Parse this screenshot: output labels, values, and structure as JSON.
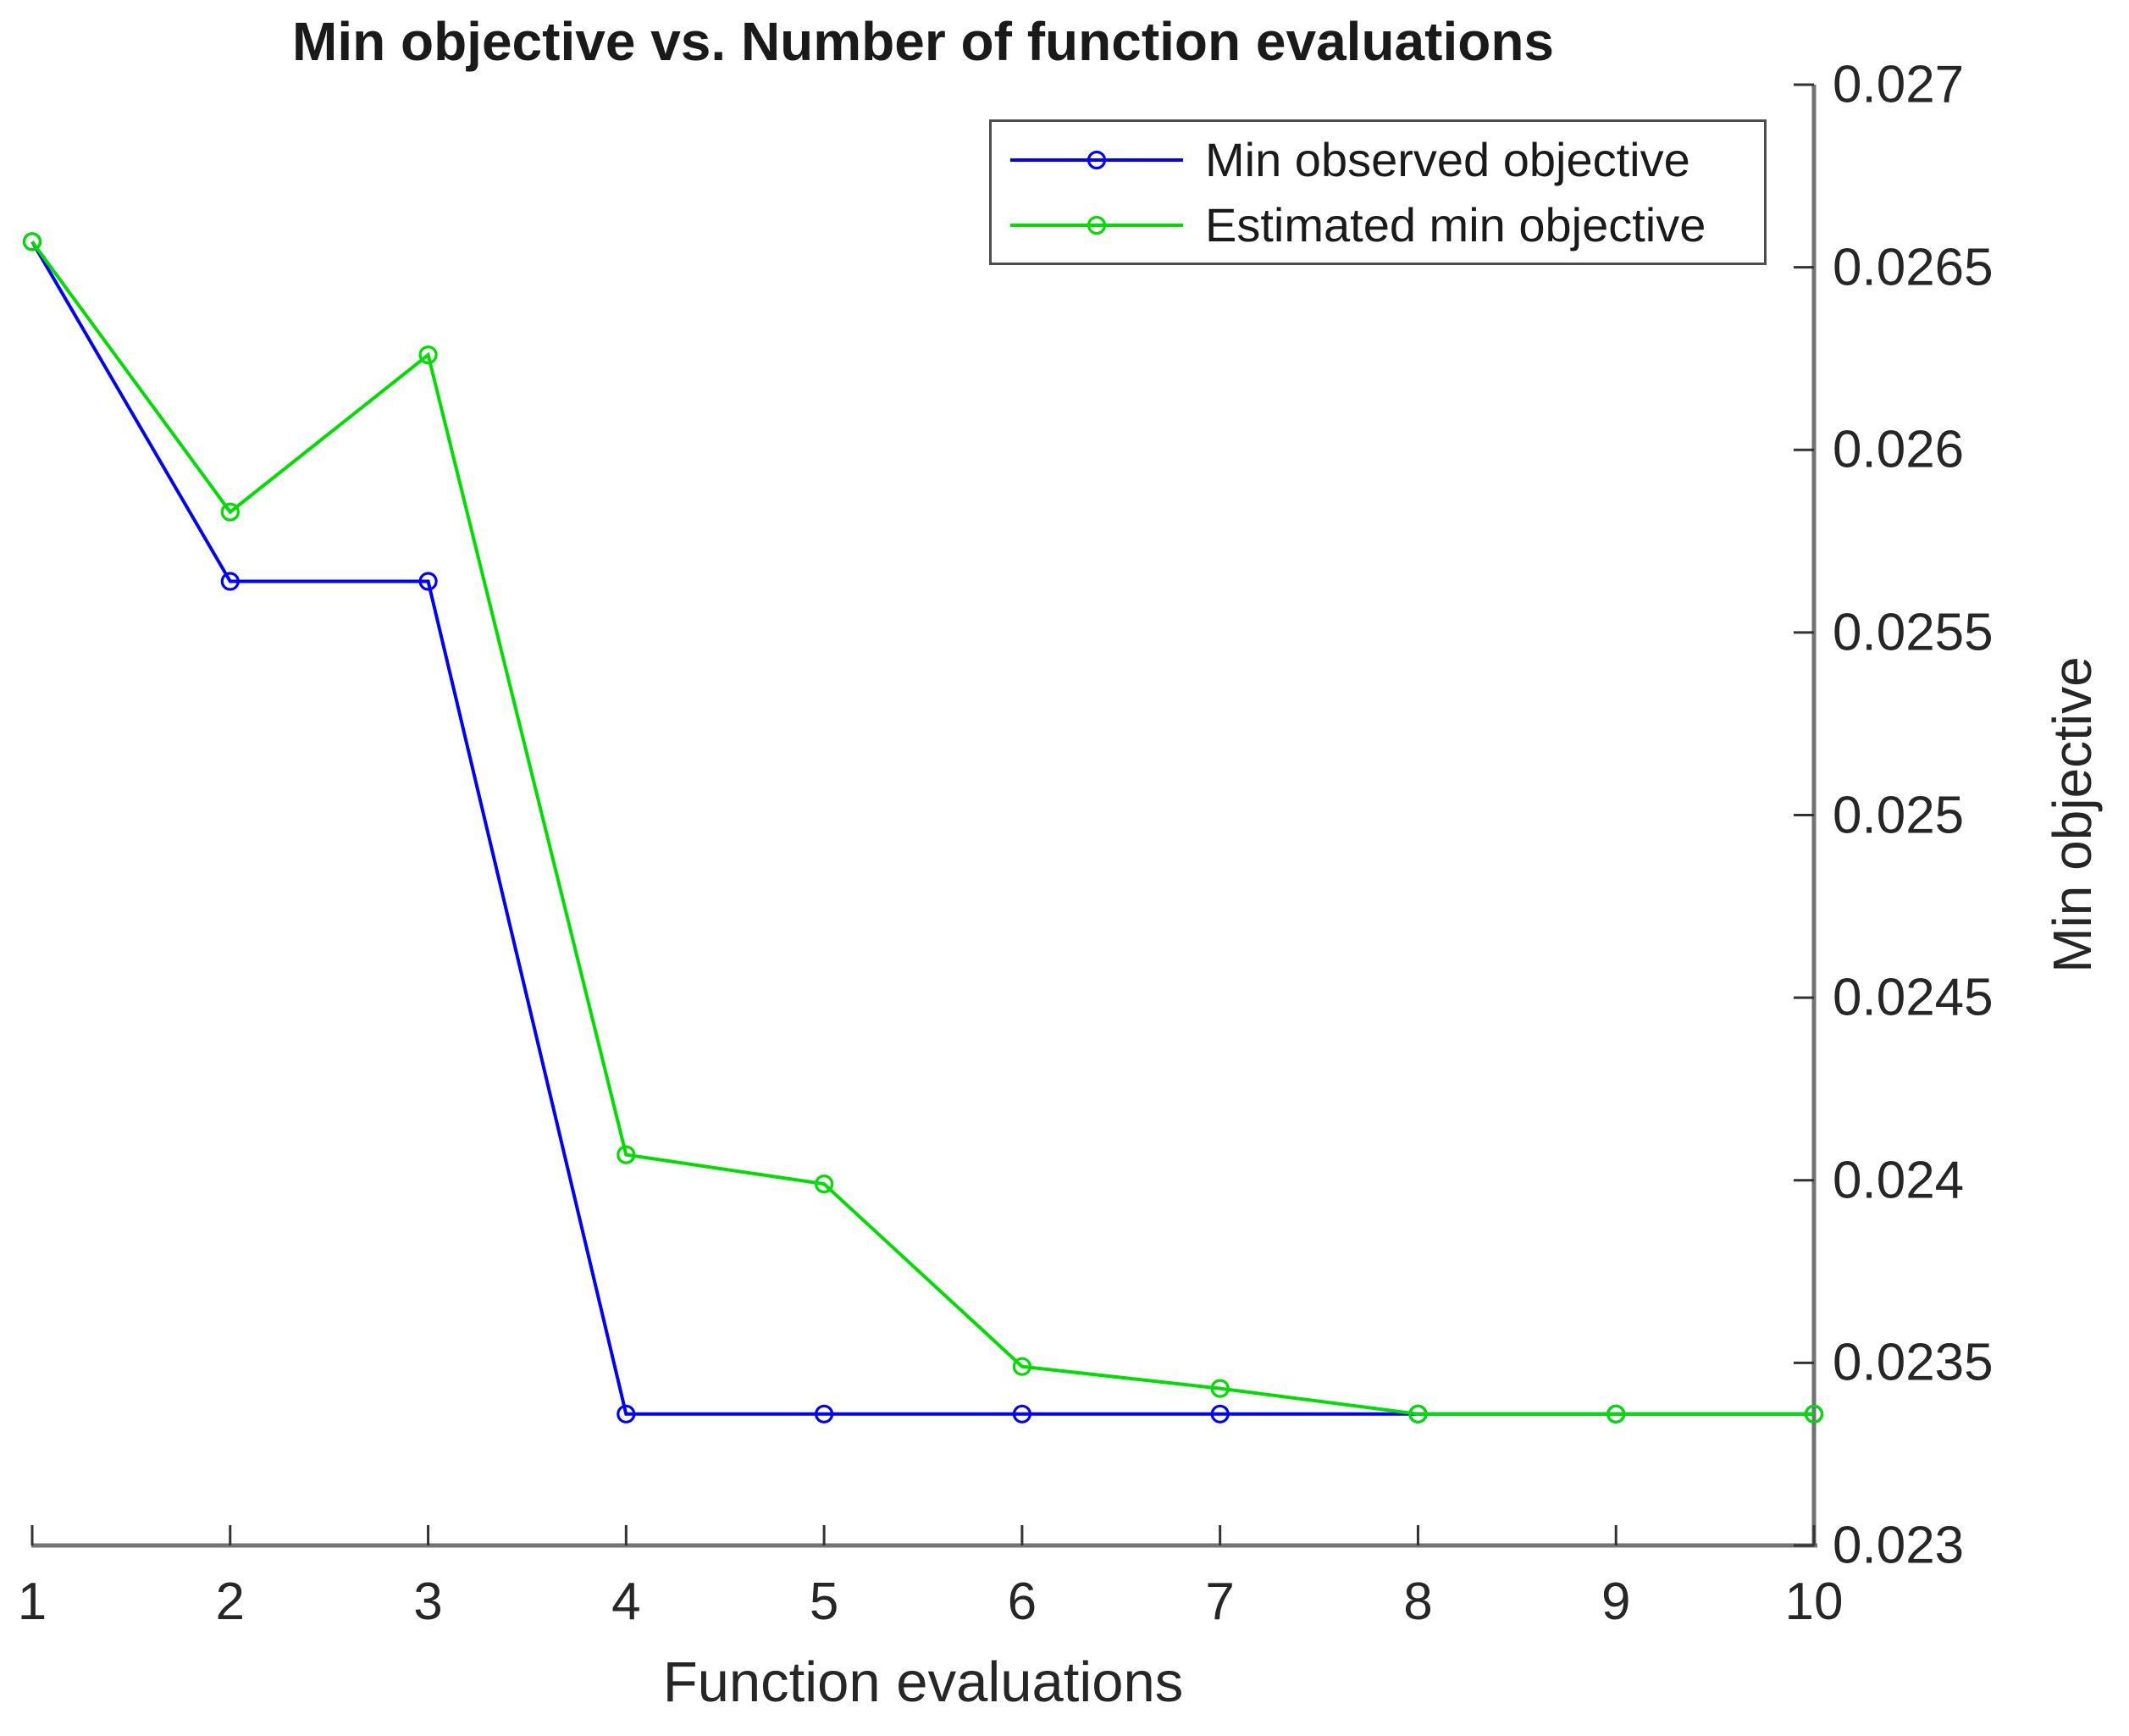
{
  "title": "Min objective vs. Number of function evaluations",
  "chart_data": {
    "type": "line",
    "title": "Min objective vs. Number of function evaluations",
    "xlabel": "Function evaluations",
    "ylabel": "Min objective",
    "x": [
      1,
      2,
      3,
      4,
      5,
      6,
      7,
      8,
      9,
      10
    ],
    "xlim": [
      1,
      10
    ],
    "ylim": [
      0.023,
      0.027
    ],
    "x_tick_labels": [
      "1",
      "2",
      "3",
      "4",
      "5",
      "6",
      "7",
      "8",
      "9",
      "10"
    ],
    "y_tick_values": [
      0.023,
      0.0235,
      0.024,
      0.0245,
      0.025,
      0.0255,
      0.026,
      0.0265,
      0.027
    ],
    "y_tick_labels": [
      "0.023",
      "0.0235",
      "0.024",
      "0.0245",
      "0.025",
      "0.0255",
      "0.026",
      "0.0265",
      "0.027"
    ],
    "grid": false,
    "y_axis_location": "right",
    "legend_position": "top-right-inside",
    "series": [
      {
        "name": "Min observed objective",
        "color": "#0000ff",
        "marker": "circle",
        "values": [
          0.02657,
          0.02564,
          0.02564,
          0.02336,
          0.02336,
          0.02336,
          0.02336,
          0.02336,
          0.02336,
          0.02336
        ]
      },
      {
        "name": "Estimated min objective",
        "color": "#00dd00",
        "marker": "circle",
        "values": [
          0.02657,
          0.02583,
          0.02626,
          0.02407,
          0.02399,
          0.02349,
          0.02343,
          0.02336,
          0.02336,
          0.02336
        ]
      }
    ],
    "axis_color": "#737373",
    "tick_color": "#333333"
  }
}
